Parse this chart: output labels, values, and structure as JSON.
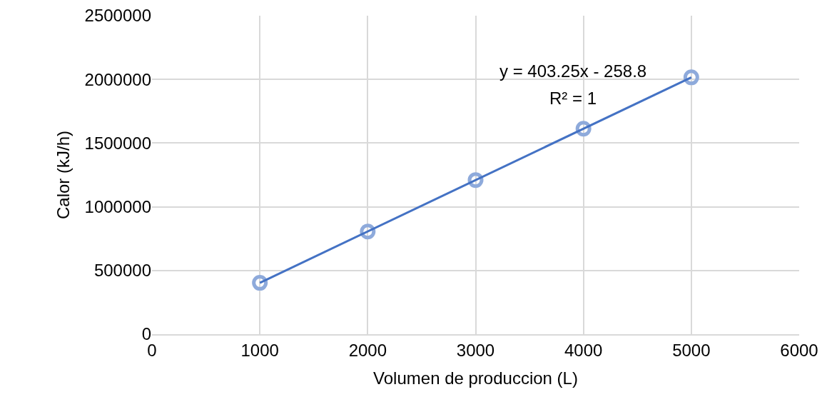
{
  "chart_data": {
    "type": "scatter",
    "xlabel": "Volumen de produccion (L)",
    "ylabel": "Calor (kJ/h)",
    "x": [
      1000,
      2000,
      3000,
      4000,
      5000
    ],
    "series": [
      {
        "color": "#8eaadb",
        "marker": "circle",
        "values": [
          403000,
          806000,
          1210000,
          1613000,
          2016000
        ]
      },
      {
        "type": "line",
        "color": "#4472c4",
        "marker": "none",
        "line_style": "solid",
        "x": [
          1000,
          5000
        ],
        "values": [
          403000,
          2016000
        ]
      }
    ],
    "annotations": [
      "y = 403.25x - 258.8",
      "R² = 1"
    ],
    "xlim": [
      0,
      6000
    ],
    "xticks": [
      0,
      1000,
      2000,
      3000,
      4000,
      5000,
      6000
    ],
    "ylim": [
      0,
      2500000
    ],
    "yticks": [
      0,
      500000,
      1000000,
      1500000,
      2000000,
      2500000
    ],
    "grid": true
  }
}
